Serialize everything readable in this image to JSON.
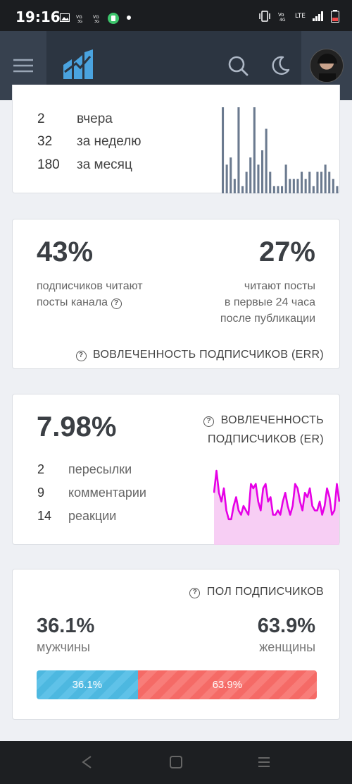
{
  "status_bar": {
    "time": "19:16",
    "network": "LTE"
  },
  "stats_card": {
    "rows": [
      {
        "value": "2",
        "label": "вчера"
      },
      {
        "value": "32",
        "label": "за неделю"
      },
      {
        "value": "180",
        "label": "за месяц"
      }
    ],
    "chart_data": {
      "type": "bar",
      "values": [
        12,
        4,
        5,
        2,
        12,
        1,
        3,
        5,
        12,
        4,
        6,
        9,
        3,
        1,
        1,
        1,
        4,
        2,
        2,
        2,
        3,
        2,
        3,
        1,
        3,
        3,
        4,
        3,
        2,
        1
      ],
      "color": "#6b7a8f"
    }
  },
  "err_card": {
    "left_value": "43%",
    "left_desc_1": "подписчиков читают",
    "left_desc_2": "посты канала",
    "right_value": "27%",
    "right_desc_1": "читают посты",
    "right_desc_2": "в первые 24 часа",
    "right_desc_3": "после публикации",
    "caption": "ВОВЛЕЧЕННОСТЬ ПОДПИСЧИКОВ (ERR)"
  },
  "er_card": {
    "value": "7.98%",
    "caption_1": "ВОВЛЕЧЕННОСТЬ",
    "caption_2": "ПОДПИСЧИКОВ (ER)",
    "rows": [
      {
        "value": "2",
        "label": "пересылки"
      },
      {
        "value": "9",
        "label": "комментарии"
      },
      {
        "value": "14",
        "label": "реакции"
      }
    ],
    "chart_data": {
      "type": "area",
      "values": [
        7,
        12,
        7,
        5,
        8,
        3,
        1,
        1,
        4,
        6,
        3,
        2,
        4,
        3,
        2,
        9,
        8,
        9,
        5,
        3,
        8,
        9,
        5,
        6,
        2,
        2,
        3,
        2,
        5,
        7,
        4,
        2,
        4,
        9,
        8,
        5,
        3,
        7,
        6,
        8,
        4,
        3,
        3,
        5,
        2,
        4,
        8,
        6,
        2,
        3,
        9,
        5
      ],
      "color": "#e600e6",
      "fill": "#f6c6f2"
    }
  },
  "gender_card": {
    "caption": "ПОЛ ПОДПИСЧИКОВ",
    "male_value": "36.1%",
    "male_label": "мужчины",
    "female_value": "63.9%",
    "female_label": "женщины",
    "male_fraction": 0.361,
    "bar_male_label": "36.1%",
    "bar_female_label": "63.9%"
  }
}
